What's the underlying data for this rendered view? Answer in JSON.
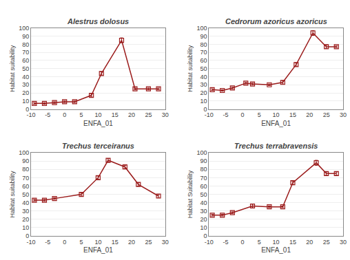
{
  "chart_data": [
    {
      "type": "line",
      "title": "Alestrus dolosus",
      "xlabel": "ENFA_01",
      "ylabel": "Habitat suitability",
      "x": [
        -9,
        -6,
        -3,
        0,
        3,
        8,
        11,
        17,
        21,
        25,
        28
      ],
      "values": [
        7,
        7,
        8,
        9,
        9,
        17,
        44,
        85,
        25,
        25,
        25
      ],
      "yerr": [
        1,
        1,
        1,
        1,
        1,
        2,
        2,
        3,
        1,
        1,
        1
      ],
      "color": "#9b1c1c",
      "marker": "square-open",
      "line_style": "solid",
      "xlim": [
        -10,
        30
      ],
      "ylim": [
        0,
        100
      ],
      "xticks": [
        -10,
        -5,
        0,
        5,
        10,
        15,
        20,
        25,
        30
      ],
      "yticks": [
        0,
        10,
        20,
        30,
        40,
        50,
        60,
        70,
        80,
        90,
        100
      ],
      "grid": "y"
    },
    {
      "type": "line",
      "title": "Cedrorum azoricus azoricus",
      "xlabel": "ENFA_01",
      "ylabel": "Habitat suitability",
      "x": [
        -9,
        -6,
        -3,
        1,
        3,
        8,
        12,
        16,
        21,
        25,
        28
      ],
      "values": [
        24,
        23,
        26,
        32,
        31,
        30,
        33,
        55,
        94,
        77,
        77
      ],
      "yerr": [
        1,
        1,
        1,
        1,
        1,
        1,
        2,
        2,
        3,
        2,
        1
      ],
      "color": "#9b1c1c",
      "marker": "square-open",
      "line_style": "solid",
      "xlim": [
        -10,
        30
      ],
      "ylim": [
        0,
        100
      ],
      "xticks": [
        -10,
        -5,
        0,
        5,
        10,
        15,
        20,
        25,
        30
      ],
      "yticks": [
        0,
        10,
        20,
        30,
        40,
        50,
        60,
        70,
        80,
        90,
        100
      ],
      "grid": "y"
    },
    {
      "type": "line",
      "title": "Trechus terceiranus",
      "xlabel": "ENFA_01",
      "ylabel": "Habitat suitability",
      "x": [
        -9,
        -6,
        -3,
        5,
        10,
        13,
        18,
        22,
        28
      ],
      "values": [
        43,
        43,
        45,
        50,
        70,
        91,
        83,
        62,
        48
      ],
      "yerr": [
        1,
        1,
        1,
        2,
        2,
        2,
        2,
        2,
        2
      ],
      "color": "#9b1c1c",
      "marker": "square-open",
      "line_style": "solid",
      "xlim": [
        -10,
        30
      ],
      "ylim": [
        0,
        100
      ],
      "xticks": [
        -10,
        -5,
        0,
        5,
        10,
        15,
        20,
        25,
        30
      ],
      "yticks": [
        0,
        10,
        20,
        30,
        40,
        50,
        60,
        70,
        80,
        90,
        100
      ],
      "grid": "y"
    },
    {
      "type": "line",
      "title": "Trechus terrabravensis",
      "xlabel": "ENFA_01",
      "ylabel": "Habitat Suitability",
      "x": [
        -9,
        -6,
        -3,
        3,
        8,
        12,
        15,
        22,
        25,
        28
      ],
      "values": [
        25,
        25,
        28,
        36,
        35,
        35,
        64,
        88,
        75,
        75
      ],
      "yerr": [
        1,
        1,
        1,
        2,
        1,
        1,
        2,
        3,
        2,
        2
      ],
      "color": "#9b1c1c",
      "marker": "square-open",
      "line_style": "solid",
      "xlim": [
        -10,
        30
      ],
      "ylim": [
        0,
        100
      ],
      "xticks": [
        -10,
        -5,
        0,
        5,
        10,
        15,
        20,
        25,
        30
      ],
      "yticks": [
        0,
        10,
        20,
        30,
        40,
        50,
        60,
        70,
        80,
        90,
        100
      ],
      "grid": "y"
    }
  ]
}
